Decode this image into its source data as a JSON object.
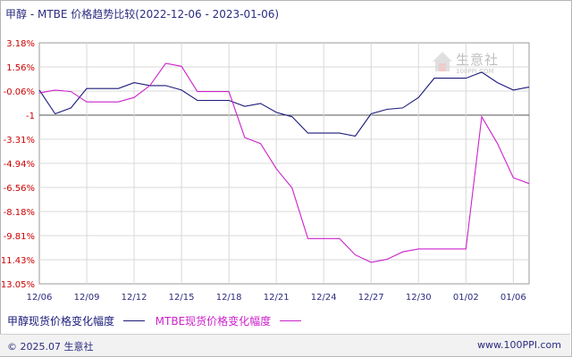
{
  "title": "甲醇 - MTBE 价格趋势比较(2022-12-06 - 2023-01-06)",
  "chart_data": {
    "type": "line",
    "y_ticks": [
      "3.18%",
      "1.56%",
      "-0.06%",
      "-1",
      "-3.31%",
      "-4.94%",
      "-6.56%",
      "-8.18%",
      "-9.81%",
      "-11.43%",
      "-13.05%"
    ],
    "x_ticks": [
      "12/06",
      "12/09",
      "12/12",
      "12/15",
      "12/18",
      "12/21",
      "12/24",
      "12/27",
      "12/30",
      "01/02",
      "01/06"
    ],
    "ylim": [
      -13.05,
      3.18
    ],
    "xlim": [
      0,
      31
    ],
    "x_tick_positions": [
      0,
      3,
      6,
      9,
      12,
      15,
      18,
      21,
      24,
      27,
      30
    ],
    "series": [
      {
        "name": "甲醇现货价格变化幅度",
        "color": "#1a1a7a",
        "x": [
          0,
          1,
          2,
          3,
          4,
          5,
          6,
          7,
          8,
          9,
          10,
          11,
          12,
          13,
          14,
          15,
          16,
          17,
          18,
          19,
          20,
          21,
          22,
          23,
          24,
          25,
          26,
          27,
          28,
          29,
          30,
          31
        ],
        "values": [
          0.0,
          -1.6,
          -1.2,
          0.1,
          0.1,
          0.1,
          0.5,
          0.3,
          0.3,
          0.0,
          -0.7,
          -0.7,
          -0.7,
          -1.1,
          -0.9,
          -1.5,
          -1.8,
          -2.9,
          -2.9,
          -2.9,
          -3.1,
          -1.6,
          -1.3,
          -1.2,
          -0.5,
          0.8,
          0.8,
          0.8,
          1.2,
          0.5,
          0.0,
          0.2
        ]
      },
      {
        "name": "MTBE现货价格变化幅度",
        "color": "#cc22cc",
        "x": [
          0,
          1,
          2,
          3,
          4,
          5,
          6,
          7,
          8,
          9,
          10,
          11,
          12,
          13,
          14,
          15,
          16,
          17,
          18,
          19,
          20,
          21,
          22,
          23,
          24,
          25,
          26,
          27,
          28,
          29,
          30,
          31
        ],
        "values": [
          -0.2,
          0.0,
          -0.1,
          -0.8,
          -0.8,
          -0.8,
          -0.5,
          0.3,
          1.8,
          1.6,
          -0.1,
          -0.1,
          -0.1,
          -3.2,
          -3.6,
          -5.3,
          -6.6,
          -10.0,
          -10.0,
          -10.0,
          -11.1,
          -11.6,
          -11.4,
          -10.9,
          -10.7,
          -10.7,
          -10.7,
          -10.7,
          -1.8,
          -3.6,
          -5.9,
          -6.3
        ]
      }
    ],
    "grid": true,
    "legend_position": "bottom-left"
  },
  "footer": {
    "copyright": "© 2025.07 生意社",
    "site": "www.100PPI.com"
  },
  "watermark": {
    "text": "生意社",
    "sub": "100PPI.COM"
  }
}
